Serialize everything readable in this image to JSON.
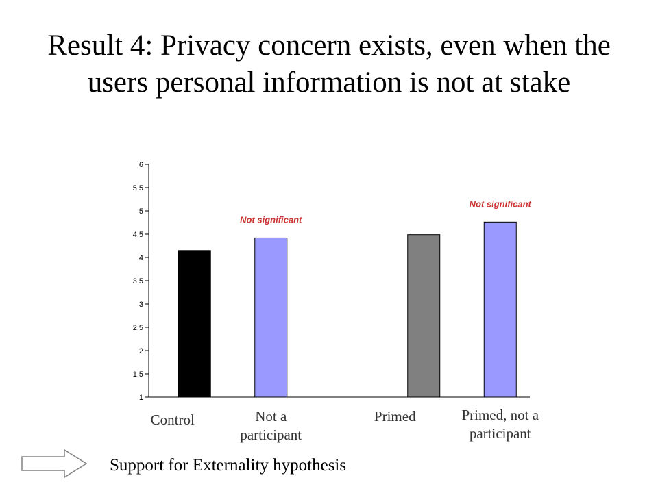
{
  "slide": {
    "title": "Result 4: Privacy concern exists, even when the users personal information is not at stake",
    "conclusion": "Support for Externality hypothesis",
    "arrow_icon": "right-arrow-icon"
  },
  "chart_data": {
    "type": "bar",
    "categories": [
      "Control",
      "Not a\nparticipant",
      "Primed",
      "Primed, not a\nparticipant"
    ],
    "values": [
      4.15,
      4.42,
      4.49,
      4.76
    ],
    "bar_colors": [
      "#000000",
      "#9999ff",
      "#808080",
      "#9999ff"
    ],
    "group_positions": [
      0,
      1,
      3,
      4
    ],
    "ylim": [
      1,
      6
    ],
    "yticks": [
      1,
      1.5,
      2,
      2.5,
      3,
      3.5,
      4,
      4.5,
      5,
      5.5,
      6
    ],
    "grid": false,
    "annotations": [
      {
        "text": "Not significant",
        "near_category": 1,
        "color": "#cc3333"
      },
      {
        "text": "Not significant",
        "near_category": 3,
        "color": "#cc3333"
      }
    ]
  }
}
